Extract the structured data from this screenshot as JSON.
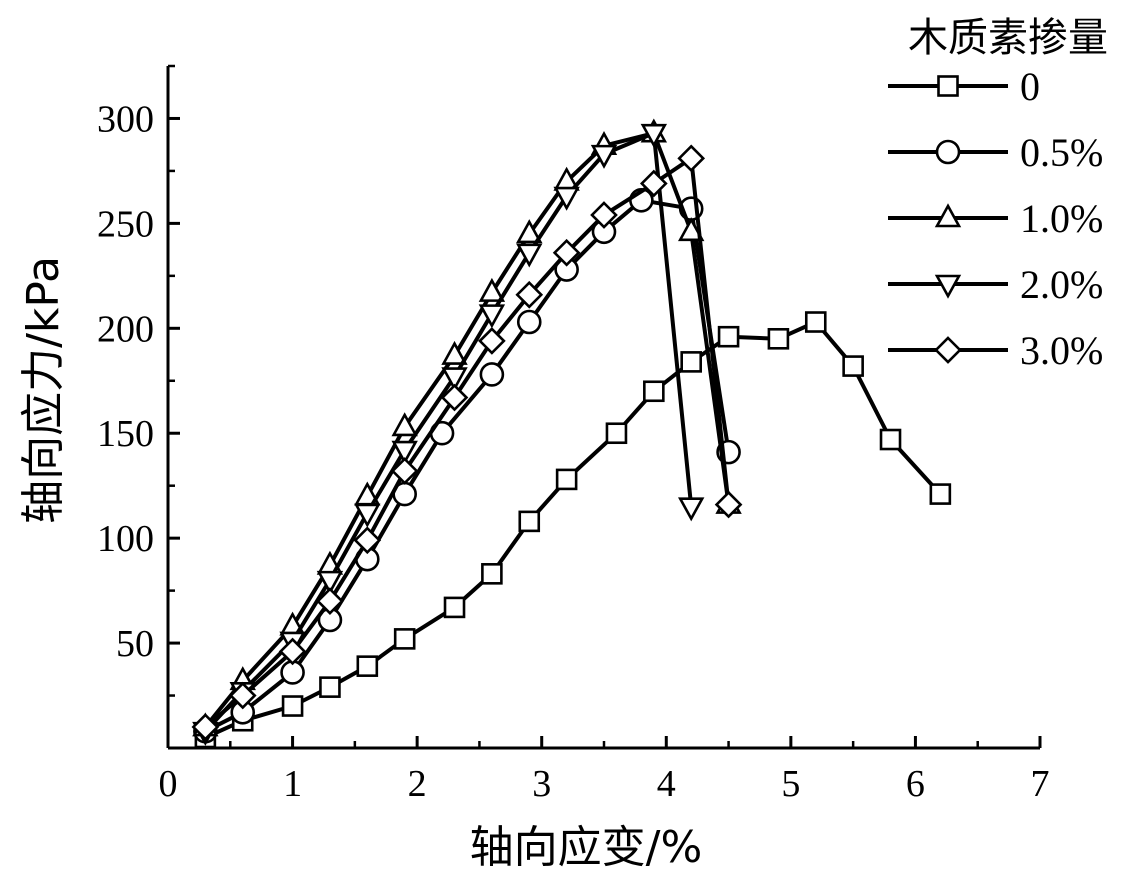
{
  "chart_data": {
    "type": "line",
    "title": "",
    "xlabel": "轴向应变/%",
    "ylabel": "轴向应力/kPa",
    "xlim": [
      0,
      7
    ],
    "ylim": [
      0,
      325
    ],
    "x_ticks": [
      0,
      1,
      2,
      3,
      4,
      5,
      6,
      7
    ],
    "y_ticks": [
      50,
      100,
      150,
      200,
      250,
      300
    ],
    "grid": false,
    "legend": {
      "title": "木质素掺量",
      "placement": "top-right"
    },
    "series": [
      {
        "name": "0",
        "marker": "square",
        "points": [
          [
            0.3,
            5
          ],
          [
            0.6,
            13
          ],
          [
            1.0,
            20
          ],
          [
            1.3,
            29
          ],
          [
            1.6,
            39
          ],
          [
            1.9,
            52
          ],
          [
            2.3,
            67
          ],
          [
            2.6,
            83
          ],
          [
            2.9,
            108
          ],
          [
            3.2,
            128
          ],
          [
            3.6,
            150
          ],
          [
            3.9,
            170
          ],
          [
            4.2,
            184
          ],
          [
            4.5,
            196
          ],
          [
            4.9,
            195
          ],
          [
            5.2,
            203
          ],
          [
            5.5,
            182
          ],
          [
            5.8,
            147
          ],
          [
            6.2,
            121
          ]
        ]
      },
      {
        "name": "0.5%",
        "marker": "circle",
        "points": [
          [
            0.3,
            8
          ],
          [
            0.6,
            17
          ],
          [
            1.0,
            36
          ],
          [
            1.3,
            61
          ],
          [
            1.6,
            90
          ],
          [
            1.9,
            121
          ],
          [
            2.2,
            150
          ],
          [
            2.6,
            178
          ],
          [
            2.9,
            203
          ],
          [
            3.2,
            228
          ],
          [
            3.5,
            246
          ],
          [
            3.8,
            261
          ],
          [
            4.2,
            257
          ],
          [
            4.5,
            141
          ]
        ]
      },
      {
        "name": "1.0%",
        "marker": "triangle-up",
        "points": [
          [
            0.3,
            10
          ],
          [
            0.6,
            32
          ],
          [
            1.0,
            58
          ],
          [
            1.3,
            87
          ],
          [
            1.6,
            120
          ],
          [
            1.9,
            153
          ],
          [
            2.3,
            187
          ],
          [
            2.6,
            217
          ],
          [
            2.9,
            245
          ],
          [
            3.2,
            270
          ],
          [
            3.5,
            287
          ],
          [
            3.9,
            293
          ],
          [
            4.2,
            246
          ],
          [
            4.5,
            116
          ]
        ]
      },
      {
        "name": "2.0%",
        "marker": "triangle-down",
        "points": [
          [
            0.3,
            8
          ],
          [
            0.6,
            27
          ],
          [
            1.0,
            51
          ],
          [
            1.3,
            80
          ],
          [
            1.6,
            112
          ],
          [
            1.9,
            142
          ],
          [
            2.3,
            177
          ],
          [
            2.6,
            207
          ],
          [
            2.9,
            236
          ],
          [
            3.2,
            263
          ],
          [
            3.5,
            283
          ],
          [
            3.9,
            293
          ],
          [
            4.2,
            115
          ]
        ]
      },
      {
        "name": "3.0%",
        "marker": "diamond",
        "points": [
          [
            0.3,
            10
          ],
          [
            0.6,
            25
          ],
          [
            1.0,
            46
          ],
          [
            1.3,
            70
          ],
          [
            1.6,
            99
          ],
          [
            1.9,
            132
          ],
          [
            2.3,
            167
          ],
          [
            2.6,
            194
          ],
          [
            2.9,
            216
          ],
          [
            3.2,
            236
          ],
          [
            3.5,
            254
          ],
          [
            3.9,
            269
          ],
          [
            4.2,
            281
          ],
          [
            4.5,
            116
          ]
        ]
      }
    ]
  }
}
